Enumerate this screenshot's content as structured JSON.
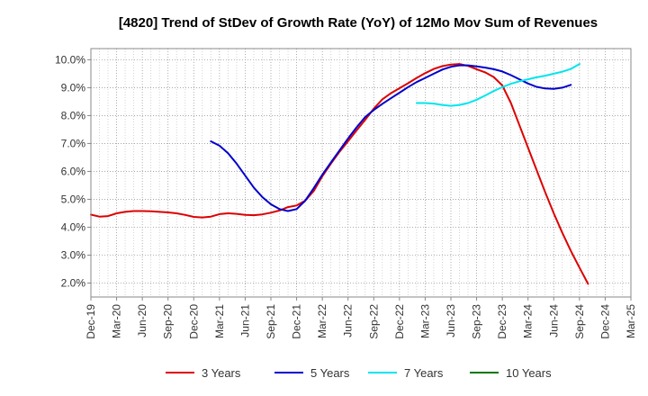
{
  "chart_data": {
    "type": "line",
    "title": "[4820]  Trend of StDev of Growth Rate (YoY) of 12Mo Mov Sum of Revenues",
    "xlabel": "",
    "ylabel": "",
    "ylim": [
      1.5,
      10.4
    ],
    "y_ticks": [
      2.0,
      3.0,
      4.0,
      5.0,
      6.0,
      7.0,
      8.0,
      9.0,
      10.0
    ],
    "y_tick_labels": [
      "2.0%",
      "3.0%",
      "4.0%",
      "5.0%",
      "6.0%",
      "7.0%",
      "8.0%",
      "9.0%",
      "10.0%"
    ],
    "x_tick_labels": [
      "Dec-19",
      "Mar-20",
      "Jun-20",
      "Sep-20",
      "Dec-20",
      "Mar-21",
      "Jun-21",
      "Sep-21",
      "Dec-21",
      "Mar-22",
      "Jun-22",
      "Sep-22",
      "Dec-22",
      "Mar-23",
      "Jun-23",
      "Sep-23",
      "Dec-23",
      "Mar-24",
      "Jun-24",
      "Sep-24",
      "Dec-24",
      "Mar-25"
    ],
    "grid": true,
    "legend_position": "bottom",
    "series": [
      {
        "name": "3 Years",
        "color": "#dd0000",
        "start_index": 0,
        "values": [
          4.45,
          4.38,
          4.4,
          4.5,
          4.55,
          4.58,
          4.58,
          4.57,
          4.55,
          4.53,
          4.5,
          4.44,
          4.37,
          4.35,
          4.38,
          4.47,
          4.5,
          4.48,
          4.44,
          4.43,
          4.46,
          4.52,
          4.6,
          4.72,
          4.78,
          4.95,
          5.3,
          5.82,
          6.28,
          6.7,
          7.08,
          7.47,
          7.85,
          8.25,
          8.58,
          8.8,
          8.98,
          9.16,
          9.35,
          9.52,
          9.67,
          9.77,
          9.83,
          9.85,
          9.78,
          9.66,
          9.55,
          9.38,
          9.08,
          8.45,
          7.65,
          6.85,
          6.05,
          5.25,
          4.5,
          3.8,
          3.15,
          2.55,
          1.97
        ]
      },
      {
        "name": "5 Years",
        "color": "#0000cc",
        "start_index": 14,
        "values": [
          7.08,
          6.92,
          6.65,
          6.28,
          5.85,
          5.42,
          5.08,
          4.82,
          4.65,
          4.58,
          4.65,
          4.95,
          5.4,
          5.88,
          6.32,
          6.75,
          7.18,
          7.58,
          7.95,
          8.2,
          8.42,
          8.62,
          8.82,
          9.02,
          9.2,
          9.35,
          9.5,
          9.65,
          9.75,
          9.8,
          9.8,
          9.76,
          9.72,
          9.66,
          9.58,
          9.45,
          9.3,
          9.15,
          9.03,
          8.97,
          8.96,
          9.0,
          9.1
        ]
      },
      {
        "name": "7 Years",
        "color": "#00e5ee",
        "start_index": 38,
        "values": [
          8.45,
          8.45,
          8.43,
          8.38,
          8.35,
          8.38,
          8.45,
          8.57,
          8.72,
          8.88,
          9.02,
          9.14,
          9.23,
          9.3,
          9.37,
          9.43,
          9.5,
          9.57,
          9.67,
          9.85
        ]
      },
      {
        "name": "10 Years",
        "color": "#007700",
        "start_index": 0,
        "values": []
      }
    ]
  }
}
